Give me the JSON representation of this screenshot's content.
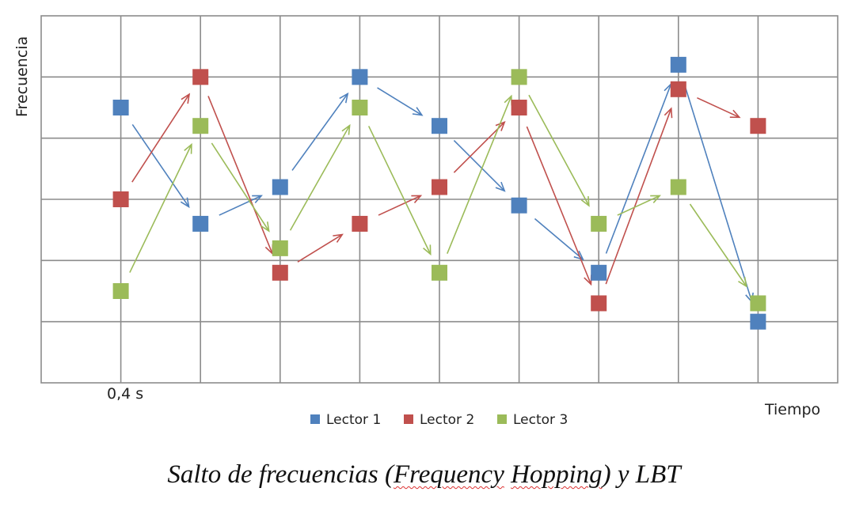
{
  "chart_data": {
    "type": "scatter",
    "ylabel": "Frecuencia",
    "xlabel": "Tiempo",
    "x_tick_label": "0,4 s",
    "x": [
      1,
      2,
      3,
      4,
      5,
      6,
      7,
      8,
      9
    ],
    "xlim": [
      0,
      10
    ],
    "ylim": [
      0,
      6
    ],
    "grid": true,
    "legend_position": "bottom",
    "series": [
      {
        "name": "Lector 1",
        "color": "#4F81BD",
        "values": [
          4.5,
          2.6,
          3.2,
          5.0,
          4.2,
          2.9,
          1.8,
          5.2,
          1.0
        ]
      },
      {
        "name": "Lector 2",
        "color": "#C0504D",
        "values": [
          3.0,
          5.0,
          1.8,
          2.6,
          3.2,
          4.5,
          1.3,
          4.8,
          4.2
        ]
      },
      {
        "name": "Lector 3",
        "color": "#9BBB59",
        "values": [
          1.5,
          4.2,
          2.2,
          4.5,
          1.8,
          5.0,
          2.6,
          3.2,
          1.3
        ]
      }
    ]
  },
  "caption": {
    "part1": "Salto de frecuencias (",
    "part2": "Frequency",
    "part3": " ",
    "part4": "Hopping",
    "part5": ") y LBT"
  }
}
